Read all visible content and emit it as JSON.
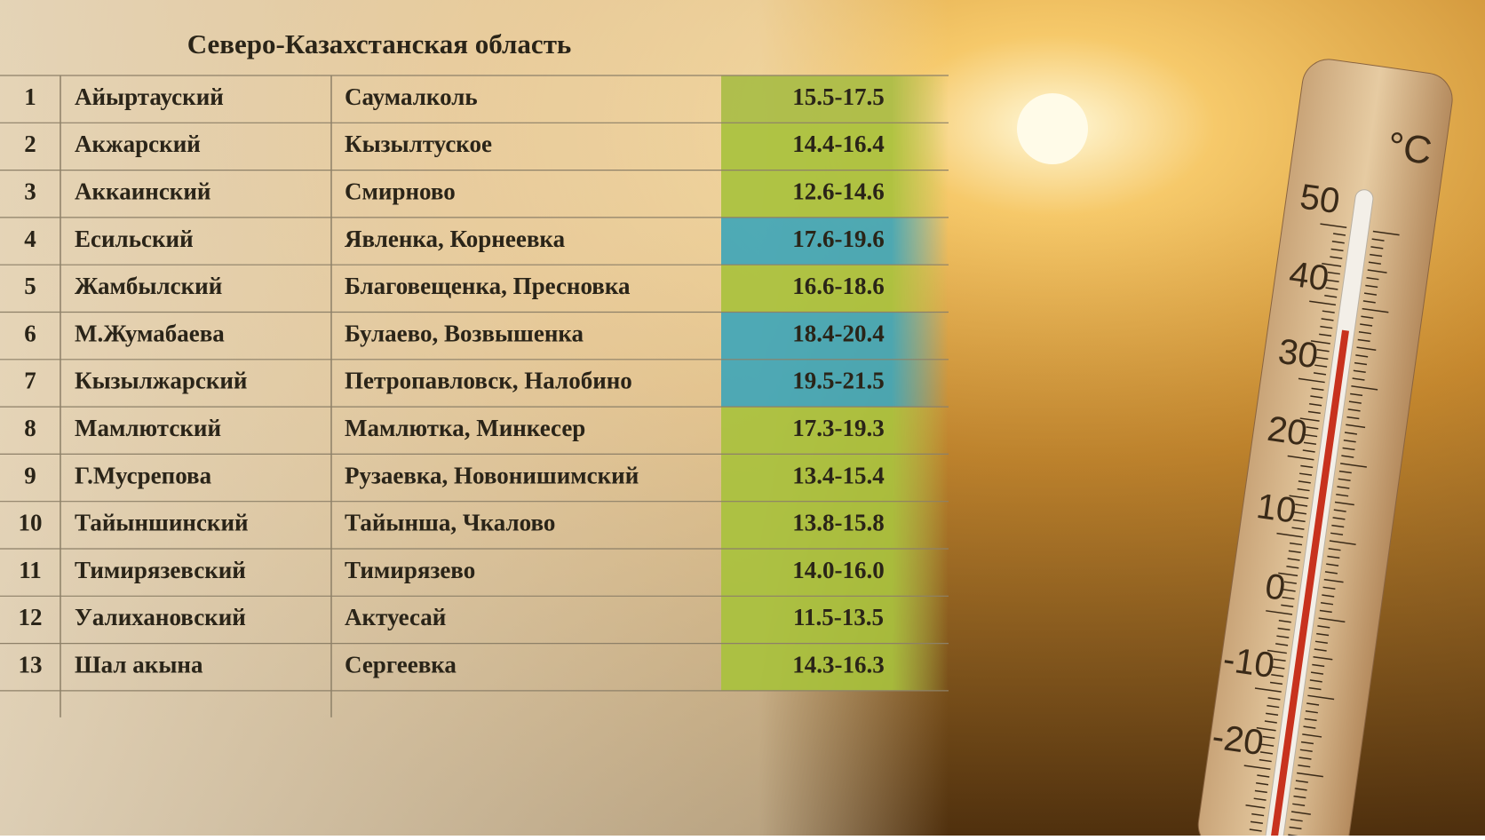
{
  "title": "Северо-Казахстанская область",
  "table": {
    "rows": [
      [
        "1",
        "Айыртауский",
        "Саумалколь",
        "15.5-17.5"
      ],
      [
        "2",
        "Акжарский",
        "Кызылтуское",
        "14.4-16.4"
      ],
      [
        "3",
        "Аккаинский",
        "Смирново",
        "12.6-14.6"
      ],
      [
        "4",
        "Есильский",
        "Явленка, Корнеевка",
        "17.6-19.6"
      ],
      [
        "5",
        "Жамбылский",
        "Благовещенка, Пресновка",
        "16.6-18.6"
      ],
      [
        "6",
        "М.Жумабаева",
        "Булаево, Возвышенка",
        "18.4-20.4"
      ],
      [
        "7",
        "Кызылжарский",
        "Петропавловск, Налобино",
        "19.5-21.5"
      ],
      [
        "8",
        "Мамлютский",
        "Мамлютка, Минкесер",
        "17.3-19.3"
      ],
      [
        "9",
        "Г.Мусрепова",
        "Рузаевка, Новонишимский",
        "13.4-15.4"
      ],
      [
        "10",
        "Тайыншинский",
        "Тайынша, Чкалово",
        "13.8-15.8"
      ],
      [
        "11",
        "Тимирязевский",
        "Тимирязево",
        "14.0-16.0"
      ],
      [
        "12",
        "Уалихановский",
        "Актуесай",
        "11.5-13.5"
      ],
      [
        "13",
        "Шал акына",
        "Сергеевка",
        "14.3-16.3"
      ]
    ],
    "colors": [
      "#a9bd45",
      "#a9c23c",
      "#a9c23c",
      "#3ea6b9",
      "#a9c23c",
      "#3ea6b9",
      "#3ea6b9",
      "#a9c23c",
      "#a9c23c",
      "#a9c23c",
      "#a9c23c",
      "#a9c23c",
      "#a9c23c"
    ]
  },
  "thermometer": {
    "unit": "°C",
    "scale": [
      "50",
      "40",
      "30",
      "20",
      "10",
      "0",
      "-10",
      "-20"
    ]
  }
}
